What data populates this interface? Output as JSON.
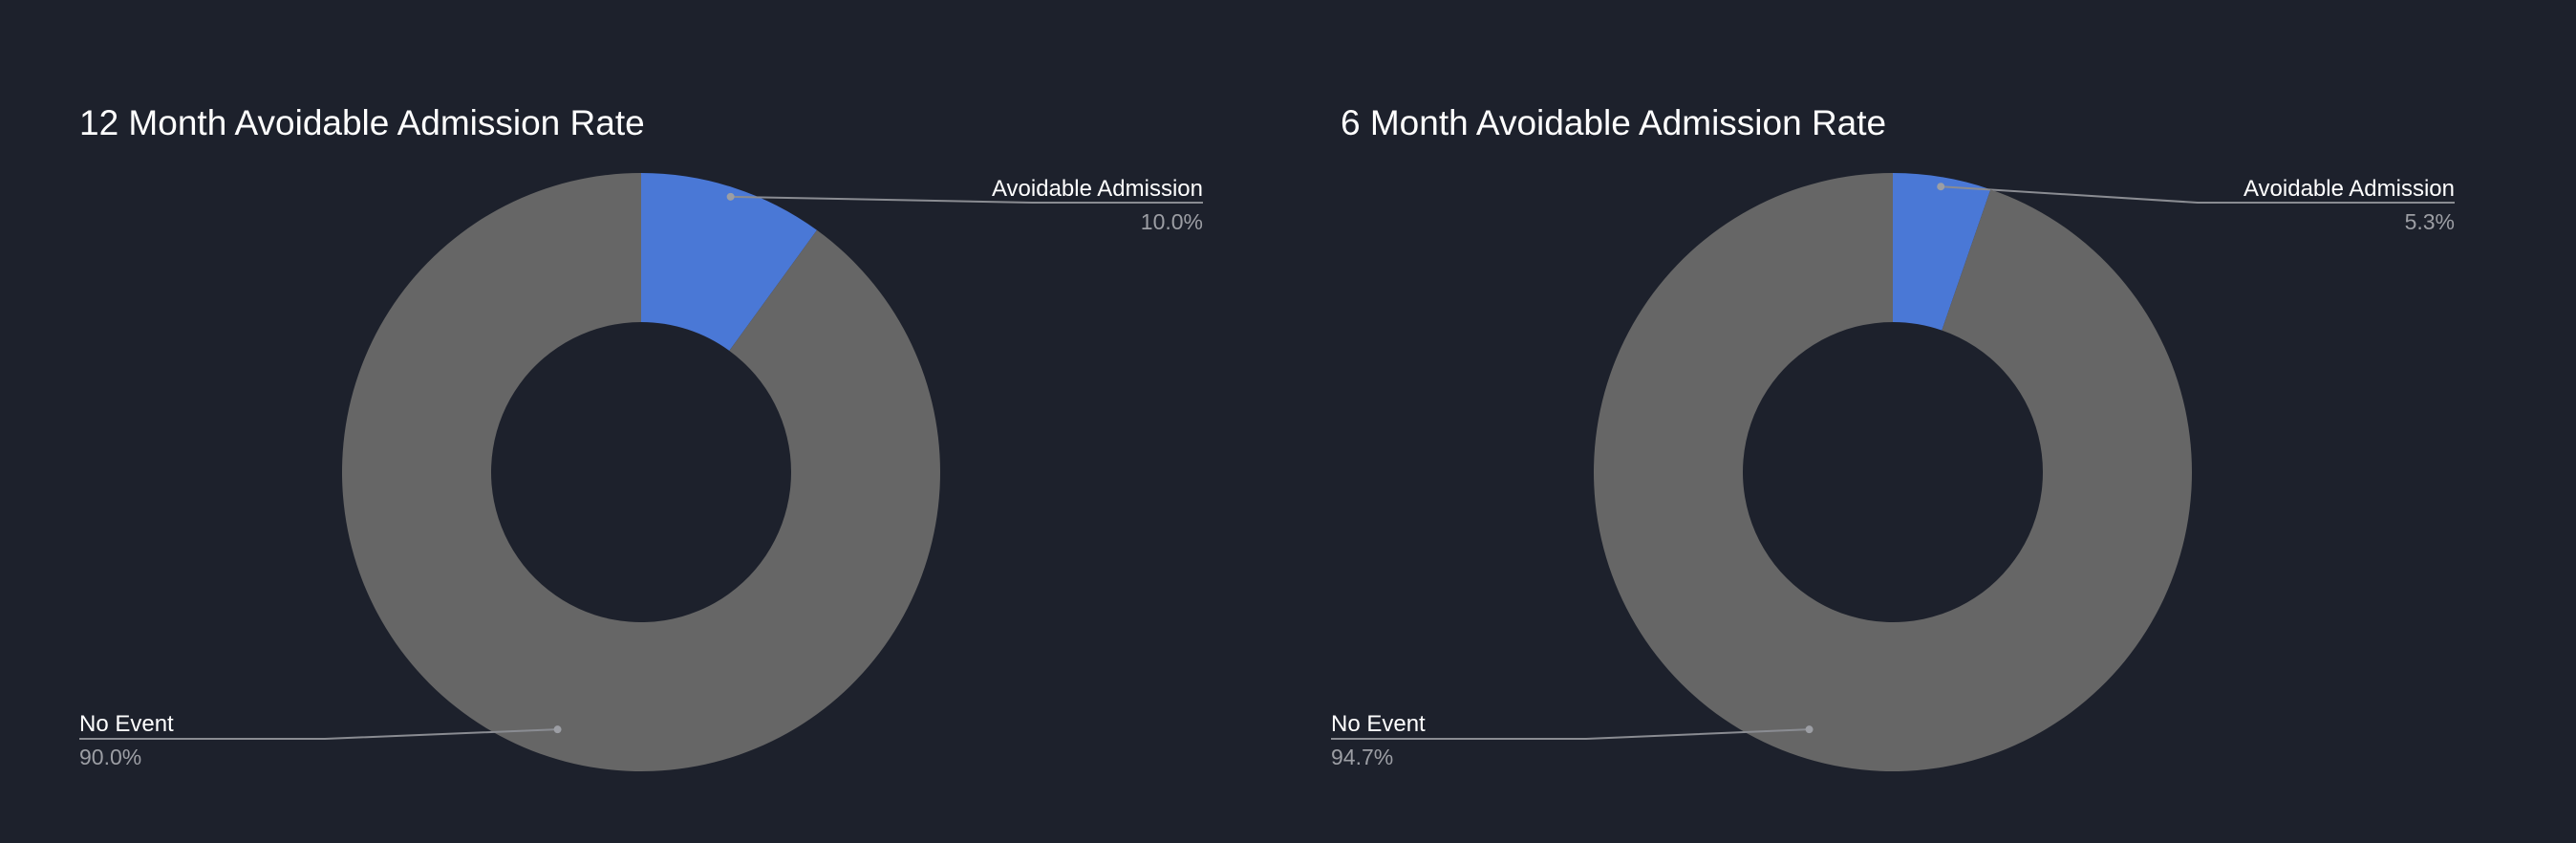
{
  "chart_data": [
    {
      "type": "pie",
      "title": "12 Month Avoidable Admission Rate",
      "slices": [
        {
          "label": "Avoidable Admission",
          "value": 10.0,
          "display": "10.0%",
          "color": "#4a78d6"
        },
        {
          "label": "No Event",
          "value": 90.0,
          "display": "90.0%",
          "color": "#666666"
        }
      ],
      "donut": true,
      "legend": "callout labels"
    },
    {
      "type": "pie",
      "title": "6 Month Avoidable Admission Rate",
      "slices": [
        {
          "label": "Avoidable Admission",
          "value": 5.3,
          "display": "5.3%",
          "color": "#4a78d6"
        },
        {
          "label": "No Event",
          "value": 94.7,
          "display": "94.7%",
          "color": "#666666"
        }
      ],
      "donut": true,
      "legend": "callout labels"
    }
  ],
  "colors": {
    "background": "#1d212c",
    "leader_line": "#8a8c92"
  }
}
